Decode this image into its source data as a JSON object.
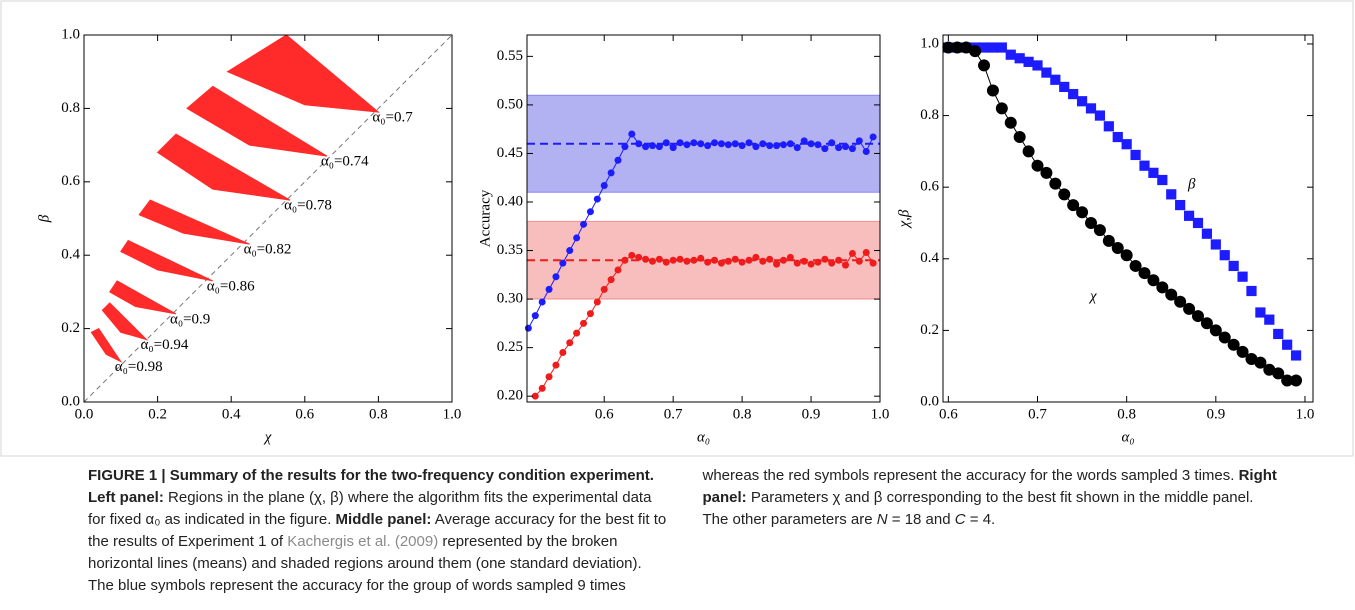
{
  "chart_data": [
    {
      "type": "region",
      "x_label": "χ",
      "y_label": "β",
      "xlim": [
        0,
        1
      ],
      "ylim": [
        0,
        1
      ],
      "xticks": [
        {
          "value": 0,
          "label": "0.0"
        },
        0.2,
        0.4,
        0.6,
        0.8,
        {
          "value": 1,
          "label": "1.0"
        }
      ],
      "yticks": [
        {
          "value": 0,
          "label": "0.0"
        },
        0.2,
        0.4,
        0.6,
        0.8,
        {
          "value": 1,
          "label": "1.0"
        }
      ],
      "series": [
        {
          "name": "α₀=0.7",
          "color": "#ff2a2a",
          "x": [
            0.39,
            0.55,
            0.8,
            0.6
          ],
          "y": [
            0.9,
            1.0,
            0.79,
            0.81
          ]
        },
        {
          "name": "α₀=0.74",
          "color": "#ff2a2a",
          "x": [
            0.28,
            0.35,
            0.66,
            0.45
          ],
          "y": [
            0.8,
            0.86,
            0.67,
            0.7
          ]
        },
        {
          "name": "α₀=0.78",
          "color": "#ff2a2a",
          "x": [
            0.2,
            0.25,
            0.56,
            0.35
          ],
          "y": [
            0.68,
            0.73,
            0.55,
            0.58
          ]
        },
        {
          "name": "α₀=0.82",
          "color": "#ff2a2a",
          "x": [
            0.15,
            0.18,
            0.45,
            0.27
          ],
          "y": [
            0.51,
            0.55,
            0.43,
            0.46
          ]
        },
        {
          "name": "α₀=0.86",
          "color": "#ff2a2a",
          "x": [
            0.1,
            0.12,
            0.35,
            0.2
          ],
          "y": [
            0.41,
            0.44,
            0.33,
            0.36
          ]
        },
        {
          "name": "α₀=0.9",
          "color": "#ff2a2a",
          "x": [
            0.07,
            0.09,
            0.25,
            0.14
          ],
          "y": [
            0.3,
            0.33,
            0.24,
            0.26
          ]
        },
        {
          "name": "α₀=0.94",
          "color": "#ff2a2a",
          "x": [
            0.05,
            0.07,
            0.17,
            0.1
          ],
          "y": [
            0.25,
            0.27,
            0.17,
            0.19
          ]
        },
        {
          "name": "α₀=0.98",
          "color": "#ff2a2a",
          "x": [
            0.02,
            0.04,
            0.1,
            0.06
          ],
          "y": [
            0.19,
            0.2,
            0.11,
            0.13
          ]
        }
      ]
    },
    {
      "type": "line_band",
      "x_label": "α₀",
      "y_label": "Accuracy",
      "xlim": [
        0.488,
        1.0
      ],
      "ylim": [
        0.194,
        0.572
      ],
      "xticks": [
        0.6,
        0.7,
        0.8,
        0.9,
        {
          "value": 1,
          "label": "1.0"
        }
      ],
      "yticks": [
        {
          "value": 0.2,
          "label": "0.20"
        },
        0.25,
        {
          "value": 0.3,
          "label": "0.30"
        },
        0.35,
        {
          "value": 0.4,
          "label": "0.40"
        },
        0.45,
        {
          "value": 0.5,
          "label": "0.50"
        },
        0.55
      ],
      "x": [
        0.49,
        0.5,
        0.51,
        0.52,
        0.53,
        0.54,
        0.55,
        0.56,
        0.57,
        0.58,
        0.59,
        0.6,
        0.61,
        0.62,
        0.63,
        0.64,
        0.65,
        0.66,
        0.67,
        0.68,
        0.69,
        0.7,
        0.71,
        0.72,
        0.73,
        0.74,
        0.75,
        0.76,
        0.77,
        0.78,
        0.79,
        0.8,
        0.81,
        0.82,
        0.83,
        0.84,
        0.85,
        0.86,
        0.87,
        0.88,
        0.89,
        0.9,
        0.91,
        0.92,
        0.93,
        0.94,
        0.95,
        0.96,
        0.97,
        0.98,
        0.99
      ],
      "series": [
        {
          "color": "#1c1cff",
          "band_color": "#a4a4f0",
          "mean": 0.46,
          "band": [
            0.41,
            0.51
          ],
          "values": [
            0.27,
            0.283,
            0.297,
            0.31,
            0.323,
            0.337,
            0.35,
            0.363,
            0.377,
            0.39,
            0.403,
            0.417,
            0.43,
            0.443,
            0.457,
            0.47,
            0.46,
            0.457,
            0.458,
            0.457,
            0.461,
            0.456,
            0.461,
            0.459,
            0.461,
            0.46,
            0.458,
            0.461,
            0.46,
            0.459,
            0.46,
            0.458,
            0.461,
            0.457,
            0.46,
            0.458,
            0.458,
            0.459,
            0.46,
            0.456,
            0.463,
            0.46,
            0.459,
            0.455,
            0.461,
            0.456,
            0.457,
            0.455,
            0.463,
            0.452,
            0.467
          ]
        },
        {
          "color": "#ee1c1c",
          "band_color": "#f7b2b2",
          "mean": 0.34,
          "band": [
            0.3,
            0.38
          ],
          "values": [
            null,
            0.2,
            0.208,
            0.22,
            0.232,
            0.245,
            0.255,
            0.265,
            0.275,
            0.285,
            0.297,
            0.31,
            0.32,
            0.33,
            0.34,
            0.345,
            0.343,
            0.341,
            0.339,
            0.341,
            0.338,
            0.34,
            0.341,
            0.339,
            0.34,
            0.342,
            0.338,
            0.34,
            0.337,
            0.339,
            0.341,
            0.338,
            0.34,
            0.343,
            0.339,
            0.341,
            0.336,
            0.34,
            0.343,
            0.337,
            0.339,
            0.336,
            0.338,
            0.341,
            0.337,
            0.34,
            0.335,
            0.347,
            0.339,
            0.348,
            0.337
          ]
        }
      ]
    },
    {
      "type": "line",
      "x_label": "α₀",
      "y_label": "χ,β",
      "xlim": [
        0.594,
        1.009
      ],
      "ylim": [
        0,
        1.025
      ],
      "xticks": [
        0.6,
        0.7,
        0.8,
        0.9,
        {
          "value": 1,
          "label": "1.0"
        }
      ],
      "yticks": [
        {
          "value": 0,
          "label": "0.0"
        },
        0.2,
        0.4,
        0.6,
        0.8,
        {
          "value": 1,
          "label": "1.0"
        }
      ],
      "x": [
        0.6,
        0.61,
        0.62,
        0.63,
        0.64,
        0.65,
        0.66,
        0.67,
        0.68,
        0.69,
        0.7,
        0.71,
        0.72,
        0.73,
        0.74,
        0.75,
        0.76,
        0.77,
        0.78,
        0.79,
        0.8,
        0.81,
        0.82,
        0.83,
        0.84,
        0.85,
        0.86,
        0.87,
        0.88,
        0.89,
        0.9,
        0.91,
        0.92,
        0.93,
        0.94,
        0.95,
        0.96,
        0.97,
        0.98,
        0.99
      ],
      "series": [
        {
          "name": "β",
          "color": "#1c1cff",
          "marker": "square",
          "line": false,
          "values": [
            0.99,
            0.99,
            0.99,
            0.99,
            0.99,
            0.99,
            0.99,
            0.97,
            0.96,
            0.95,
            0.94,
            0.92,
            0.9,
            0.88,
            0.86,
            0.84,
            0.82,
            0.8,
            0.77,
            0.74,
            0.72,
            0.69,
            0.66,
            0.64,
            0.62,
            0.58,
            0.55,
            0.52,
            0.5,
            0.47,
            0.44,
            0.41,
            0.38,
            0.35,
            0.31,
            0.25,
            0.23,
            0.19,
            0.16,
            0.13
          ]
        },
        {
          "name": "χ",
          "color": "#000000",
          "marker": "circle",
          "line": true,
          "values": [
            0.99,
            0.99,
            0.99,
            0.98,
            0.94,
            0.87,
            0.82,
            0.78,
            0.74,
            0.7,
            0.66,
            0.64,
            0.61,
            0.58,
            0.55,
            0.53,
            0.5,
            0.48,
            0.45,
            0.43,
            0.41,
            0.38,
            0.36,
            0.34,
            0.32,
            0.3,
            0.28,
            0.26,
            0.24,
            0.22,
            0.2,
            0.18,
            0.16,
            0.14,
            0.12,
            0.11,
            0.09,
            0.08,
            0.06,
            0.06
          ]
        }
      ]
    }
  ],
  "caption": {
    "title": "FIGURE 1 | Summary of the results for the two-frequency condition experiment.",
    "left_label": "Left panel:",
    "left_text": "Regions in the plane (χ, β) where the algorithm fits the experimental data for fixed α₀ as indicated in the figure.",
    "middle_label": "Middle panel:",
    "middle_text": "Average accuracy for the best fit to the results of Experiment 1 of",
    "citation": "Kachergis et al. (2009)",
    "middle_text_2": "represented by the broken horizontal lines (means) and shaded regions around them (one standard deviation). The blue symbols represent the accuracy for the group of words sampled 9 times whereas the red symbols represent the accuracy for the words sampled 3 times.",
    "right_label": "Right panel:",
    "right_text": "Parameters χ and β corresponding to the best fit shown in the middle panel. The other parameters are",
    "n_symbol": "N",
    "n_value": "= 18 and",
    "c_symbol": "C",
    "c_value": "= 4."
  }
}
